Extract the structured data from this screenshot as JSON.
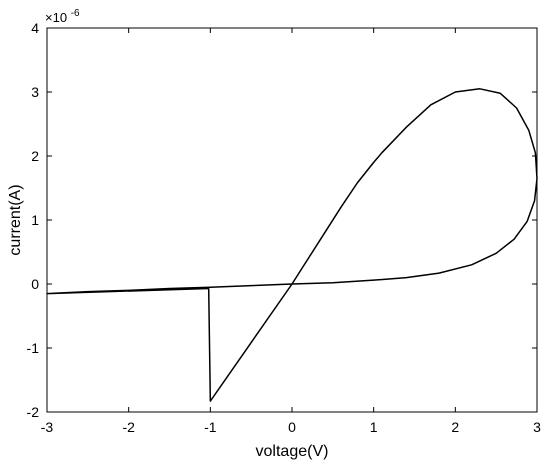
{
  "chart_data": {
    "type": "line",
    "title": "",
    "xlabel": "voltage(V)",
    "ylabel": "current(A)",
    "y_exponent_label": "×10",
    "y_exponent_power": "-6",
    "xlim": [
      -3,
      3
    ],
    "ylim": [
      -2,
      4
    ],
    "x_ticks": [
      "-3",
      "-2",
      "-1",
      "0",
      "1",
      "2",
      "3"
    ],
    "y_ticks": [
      "-2",
      "-1",
      "0",
      "1",
      "2",
      "3",
      "4"
    ],
    "grid": false,
    "line_color": "#000000",
    "series": [
      {
        "x": [
          0,
          0.2,
          0.4,
          0.6,
          0.8,
          1.0,
          1.1,
          1.4,
          1.7,
          2.0,
          2.3,
          2.55,
          2.75,
          2.9,
          2.98,
          3.0,
          2.97,
          2.88,
          2.72,
          2.5,
          2.2,
          1.8,
          1.4,
          1.0,
          0.5,
          0,
          -0.5,
          -1.0,
          -1.5,
          -2.0,
          -2.5,
          -3.0,
          -1.02,
          -1.0,
          0
        ],
        "y": [
          0,
          0.4,
          0.8,
          1.2,
          1.58,
          1.9,
          2.05,
          2.45,
          2.8,
          3.0,
          3.05,
          2.98,
          2.75,
          2.4,
          2.05,
          1.65,
          1.3,
          0.98,
          0.7,
          0.48,
          0.3,
          0.17,
          0.1,
          0.06,
          0.02,
          0,
          -0.025,
          -0.05,
          -0.07,
          -0.1,
          -0.12,
          -0.15,
          -0.07,
          -1.83,
          0
        ]
      }
    ]
  }
}
